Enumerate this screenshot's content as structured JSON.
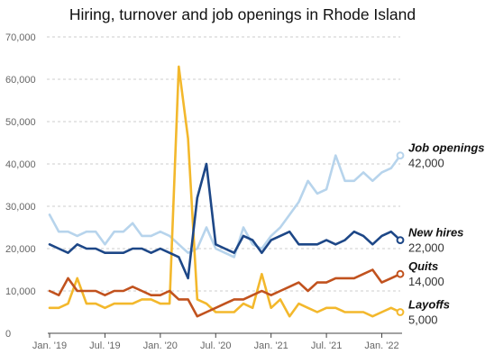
{
  "chart_data": {
    "type": "line",
    "title": "Hiring, turnover and job openings in Rhode Island",
    "xlabel": "",
    "ylabel": "",
    "ylim": [
      0,
      70000
    ],
    "y_ticks": [
      0,
      10000,
      20000,
      30000,
      40000,
      50000,
      60000,
      70000
    ],
    "y_tick_labels": [
      "0",
      "10,000",
      "20,000",
      "30,000",
      "40,000",
      "50,000",
      "60,000",
      "70,000"
    ],
    "x_tick_labels": [
      "Jan. '19",
      "Jul. '19",
      "Jan. '20",
      "Jul. '20",
      "Jan. '21",
      "Jul. '21",
      "Jan. '22"
    ],
    "x": [
      "2019-01",
      "2019-02",
      "2019-03",
      "2019-04",
      "2019-05",
      "2019-06",
      "2019-07",
      "2019-08",
      "2019-09",
      "2019-10",
      "2019-11",
      "2019-12",
      "2020-01",
      "2020-02",
      "2020-03",
      "2020-04",
      "2020-05",
      "2020-06",
      "2020-07",
      "2020-08",
      "2020-09",
      "2020-10",
      "2020-11",
      "2020-12",
      "2021-01",
      "2021-02",
      "2021-03",
      "2021-04",
      "2021-05",
      "2021-06",
      "2021-07",
      "2021-08",
      "2021-09",
      "2021-10",
      "2021-11",
      "2021-12",
      "2022-01",
      "2022-02",
      "2022-03"
    ],
    "grid": true,
    "series": [
      {
        "name": "Job openings",
        "end_label": "42,000",
        "color": "#b7d4ec",
        "values": [
          28000,
          24000,
          24000,
          23000,
          24000,
          24000,
          21000,
          24000,
          24000,
          26000,
          23000,
          23000,
          24000,
          23000,
          21000,
          19000,
          20000,
          25000,
          20000,
          19000,
          18000,
          25000,
          21000,
          20000,
          23000,
          25000,
          28000,
          31000,
          36000,
          33000,
          34000,
          42000,
          36000,
          36000,
          38000,
          36000,
          38000,
          39000,
          42000
        ]
      },
      {
        "name": "New hires",
        "end_label": "22,000",
        "color": "#1d4787",
        "values": [
          21000,
          20000,
          19000,
          21000,
          20000,
          20000,
          19000,
          19000,
          19000,
          20000,
          20000,
          19000,
          20000,
          19000,
          18000,
          13000,
          32000,
          40000,
          21000,
          20000,
          19000,
          23000,
          22000,
          19000,
          22000,
          23000,
          24000,
          21000,
          21000,
          21000,
          22000,
          21000,
          22000,
          24000,
          23000,
          21000,
          23000,
          24000,
          22000
        ]
      },
      {
        "name": "Quits",
        "end_label": "14,000",
        "color": "#c1521e",
        "values": [
          10000,
          9000,
          13000,
          10000,
          10000,
          10000,
          9000,
          10000,
          10000,
          11000,
          10000,
          9000,
          9000,
          10000,
          8000,
          8000,
          4000,
          5000,
          6000,
          7000,
          8000,
          8000,
          9000,
          10000,
          9000,
          10000,
          11000,
          12000,
          10000,
          12000,
          12000,
          13000,
          13000,
          13000,
          14000,
          15000,
          12000,
          13000,
          14000
        ]
      },
      {
        "name": "Layoffs",
        "end_label": "5,000",
        "color": "#f3b82c",
        "values": [
          6000,
          6000,
          7000,
          13000,
          7000,
          7000,
          6000,
          7000,
          7000,
          7000,
          8000,
          8000,
          7000,
          7000,
          63000,
          46000,
          8000,
          7000,
          5000,
          5000,
          5000,
          7000,
          6000,
          14000,
          6000,
          8000,
          4000,
          7000,
          6000,
          5000,
          6000,
          6000,
          5000,
          5000,
          5000,
          4000,
          5000,
          6000,
          5000
        ]
      }
    ]
  }
}
